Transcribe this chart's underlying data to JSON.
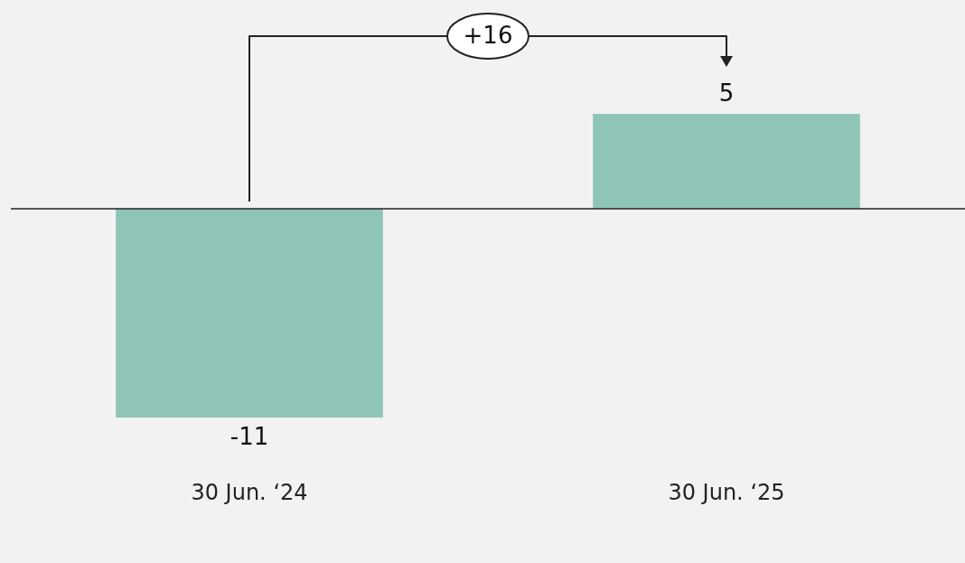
{
  "chart_data": {
    "type": "bar",
    "categories": [
      "30 Jun. ‘24",
      "30 Jun. ‘25"
    ],
    "values": [
      -11,
      5
    ],
    "color": "#8fc5b7",
    "data_labels": true,
    "grid": false,
    "legend": false,
    "tick_labels": "x",
    "annotations": [
      "+16"
    ]
  }
}
